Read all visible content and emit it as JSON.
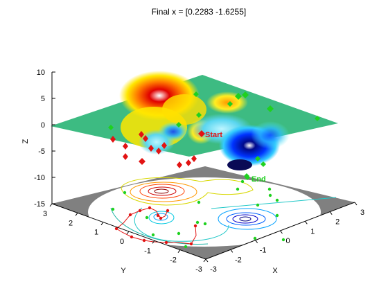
{
  "figure": {
    "title": "Final x = [0.2283 -1.6255]"
  },
  "chart_data": {
    "type": "surface",
    "title": "Final x = [0.2283 -1.6255]",
    "xlabel": "X",
    "ylabel": "Y",
    "zlabel": "Z",
    "xlim": [
      -3,
      3
    ],
    "ylim": [
      -3,
      3
    ],
    "zlim": [
      -15,
      10
    ],
    "x_ticks": [
      -3,
      -2,
      -1,
      0,
      1,
      2,
      3
    ],
    "y_ticks": [
      -3,
      -2,
      -1,
      0,
      1,
      2,
      3
    ],
    "z_ticks": [
      -15,
      -10,
      -5,
      0,
      5,
      10
    ],
    "surface_peak": {
      "x": -0.1,
      "y": 1.6,
      "z": 8.1
    },
    "surface_minimum": {
      "x": 0.23,
      "y": -1.63,
      "z": -6.55
    },
    "annotations": [
      {
        "text": "Start",
        "color": "#e21313"
      },
      {
        "text": "End",
        "color": "#1fd11f"
      }
    ],
    "final_x": [
      0.2283,
      -1.6255
    ],
    "colors": {
      "start_marker": "#ff0000",
      "end_marker": "#00ff00",
      "contour_disk": "#ffffff",
      "floor": "#808080"
    }
  }
}
